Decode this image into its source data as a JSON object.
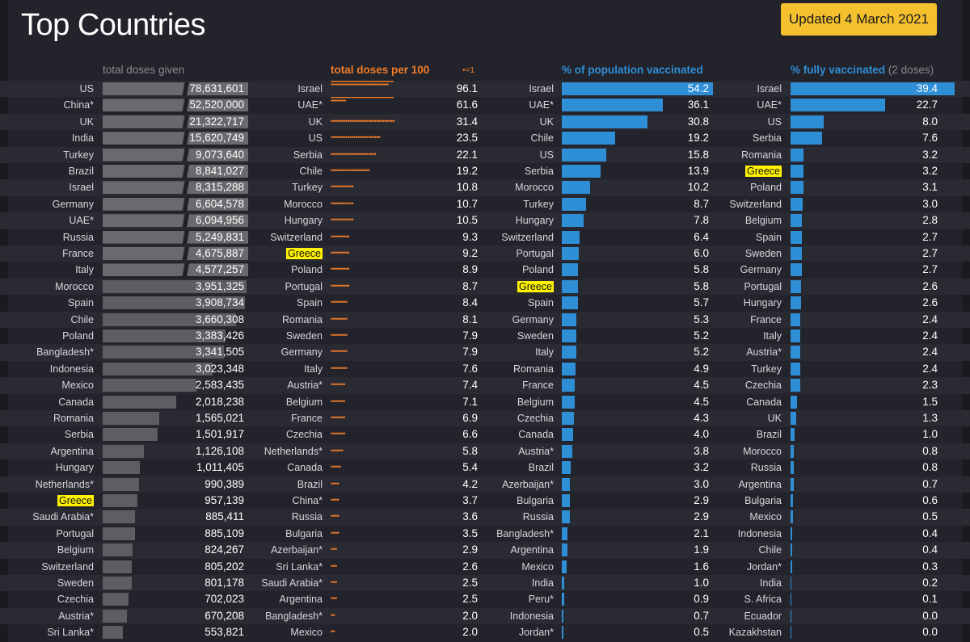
{
  "header": {
    "title": "Top Countries",
    "updated": "Updated 4 March 2021"
  },
  "colors": {
    "background": "#23232b",
    "orange": "#f07d2a",
    "blue": "#2f8fd6",
    "gray_bar": "#5d5d62",
    "highlight": "#fff200",
    "badge": "#f5c02e"
  },
  "chart_data": [
    {
      "type": "bar",
      "title": "total doses given",
      "categories": [
        "US",
        "China*",
        "UK",
        "India",
        "Turkey",
        "Brazil",
        "Israel",
        "Germany",
        "UAE*",
        "Russia",
        "France",
        "Italy",
        "Morocco",
        "Spain",
        "Chile",
        "Poland",
        "Bangladesh*",
        "Indonesia",
        "Mexico",
        "Canada",
        "Romania",
        "Serbia",
        "Argentina",
        "Hungary",
        "Netherlands*",
        "Greece",
        "Saudi Arabia*",
        "Portugal",
        "Belgium",
        "Switzerland",
        "Sweden",
        "Czechia",
        "Austria*",
        "Sri Lanka*"
      ],
      "labels": [
        "78,631,601",
        "52,520,000",
        "21,322,717",
        "15,620,749",
        "9,073,640",
        "8,841,027",
        "8,315,288",
        "6,604,578",
        "6,094,956",
        "5,249,831",
        "4,675,887",
        "4,577,257",
        "3,951,325",
        "3,908,734",
        "3,660,308",
        "3,383,426",
        "3,341,505",
        "3,023,348",
        "2,583,435",
        "2,018,238",
        "1,565,021",
        "1,501,917",
        "1,126,108",
        "1,011,405",
        "990,389",
        "957,139",
        "885,411",
        "885,109",
        "824,267",
        "805,202",
        "801,178",
        "702,023",
        "670,208",
        "553,821"
      ],
      "values": [
        78631601,
        52520000,
        21322717,
        15620749,
        9073640,
        8841027,
        8315288,
        6604578,
        6094956,
        5249831,
        4675887,
        4577257,
        3951325,
        3908734,
        3660308,
        3383426,
        3341505,
        3023348,
        2583435,
        2018238,
        1565021,
        1501917,
        1126108,
        1011405,
        990389,
        957139,
        885411,
        885109,
        824267,
        805202,
        801178,
        702023,
        670208,
        553821
      ],
      "axis_max": 4000000,
      "highlight": "Greece"
    },
    {
      "type": "bar",
      "title": "total doses per 100",
      "legend": "•=1",
      "categories": [
        "Israel",
        "UAE*",
        "UK",
        "US",
        "Serbia",
        "Chile",
        "Turkey",
        "Morocco",
        "Hungary",
        "Switzerland",
        "Greece",
        "Poland",
        "Portugal",
        "Spain",
        "Romania",
        "Sweden",
        "Germany",
        "Italy",
        "Austria*",
        "Belgium",
        "France",
        "Czechia",
        "Netherlands*",
        "Canada",
        "Brazil",
        "China*",
        "Russia",
        "Bulgaria",
        "Azerbaijan*",
        "Sri Lanka*",
        "Saudi Arabia*",
        "Argentina",
        "Bangladesh*",
        "Mexico"
      ],
      "labels": [
        "96.1",
        "61.6",
        "31.4",
        "23.5",
        "22.1",
        "19.2",
        "10.8",
        "10.7",
        "10.5",
        "9.3",
        "9.2",
        "8.9",
        "8.7",
        "8.4",
        "8.1",
        "7.9",
        "7.9",
        "7.6",
        "7.4",
        "7.1",
        "6.9",
        "6.6",
        "5.8",
        "5.4",
        "4.2",
        "3.7",
        "3.6",
        "3.5",
        "2.9",
        "2.6",
        "2.5",
        "2.5",
        "2.0",
        "2.0"
      ],
      "values": [
        96.1,
        61.6,
        31.4,
        23.5,
        22.1,
        19.2,
        10.8,
        10.7,
        10.5,
        9.3,
        9.2,
        8.9,
        8.7,
        8.4,
        8.1,
        7.9,
        7.9,
        7.6,
        7.4,
        7.1,
        6.9,
        6.6,
        5.8,
        5.4,
        4.2,
        3.7,
        3.6,
        3.5,
        2.9,
        2.6,
        2.5,
        2.5,
        2.0,
        2.0
      ],
      "highlight": "Greece"
    },
    {
      "type": "bar",
      "title": "% of population vaccinated",
      "categories": [
        "Israel",
        "UAE*",
        "UK",
        "Chile",
        "US",
        "Serbia",
        "Morocco",
        "Turkey",
        "Hungary",
        "Switzerland",
        "Portugal",
        "Poland",
        "Greece",
        "Spain",
        "Germany",
        "Sweden",
        "Italy",
        "Romania",
        "France",
        "Belgium",
        "Czechia",
        "Canada",
        "Austria*",
        "Brazil",
        "Azerbaijan*",
        "Bulgaria",
        "Russia",
        "Bangladesh*",
        "Argentina",
        "Mexico",
        "India",
        "Peru*",
        "Indonesia",
        "Jordan*"
      ],
      "labels": [
        "54.2",
        "36.1",
        "30.8",
        "19.2",
        "15.8",
        "13.9",
        "10.2",
        "8.7",
        "7.8",
        "6.4",
        "6.0",
        "5.8",
        "5.8",
        "5.7",
        "5.3",
        "5.2",
        "5.2",
        "4.9",
        "4.5",
        "4.5",
        "4.3",
        "4.0",
        "3.8",
        "3.2",
        "3.0",
        "2.9",
        "2.9",
        "2.1",
        "1.9",
        "1.6",
        "1.0",
        "0.9",
        "0.7",
        "0.5"
      ],
      "values": [
        54.2,
        36.1,
        30.8,
        19.2,
        15.8,
        13.9,
        10.2,
        8.7,
        7.8,
        6.4,
        6.0,
        5.8,
        5.8,
        5.7,
        5.3,
        5.2,
        5.2,
        4.9,
        4.5,
        4.5,
        4.3,
        4.0,
        3.8,
        3.2,
        3.0,
        2.9,
        2.9,
        2.1,
        1.9,
        1.6,
        1.0,
        0.9,
        0.7,
        0.5
      ],
      "axis_max": 54.2,
      "highlight": "Greece"
    },
    {
      "type": "bar",
      "title": "% fully vaccinated",
      "subtitle": "(2 doses)",
      "categories": [
        "Israel",
        "UAE*",
        "US",
        "Serbia",
        "Romania",
        "Greece",
        "Poland",
        "Switzerland",
        "Belgium",
        "Spain",
        "Sweden",
        "Germany",
        "Portugal",
        "Hungary",
        "France",
        "Italy",
        "Austria*",
        "Turkey",
        "Czechia",
        "Canada",
        "UK",
        "Brazil",
        "Morocco",
        "Russia",
        "Argentina",
        "Bulgaria",
        "Mexico",
        "Indonesia",
        "Chile",
        "Jordan*",
        "India",
        "S. Africa",
        "Ecuador",
        "Kazakhstan"
      ],
      "labels": [
        "39.4",
        "22.7",
        "8.0",
        "7.6",
        "3.2",
        "3.2",
        "3.1",
        "3.0",
        "2.8",
        "2.7",
        "2.7",
        "2.7",
        "2.6",
        "2.6",
        "2.4",
        "2.4",
        "2.4",
        "2.4",
        "2.3",
        "1.5",
        "1.3",
        "1.0",
        "0.8",
        "0.8",
        "0.7",
        "0.6",
        "0.5",
        "0.4",
        "0.4",
        "0.3",
        "0.2",
        "0.1",
        "0.0",
        "0.0"
      ],
      "values": [
        39.4,
        22.7,
        8.0,
        7.6,
        3.2,
        3.2,
        3.1,
        3.0,
        2.8,
        2.7,
        2.7,
        2.7,
        2.6,
        2.6,
        2.4,
        2.4,
        2.4,
        2.4,
        2.3,
        1.5,
        1.3,
        1.0,
        0.8,
        0.8,
        0.7,
        0.6,
        0.5,
        0.4,
        0.4,
        0.3,
        0.2,
        0.1,
        0.0,
        0.0
      ],
      "axis_max": 39.4,
      "highlight": "Greece"
    }
  ]
}
